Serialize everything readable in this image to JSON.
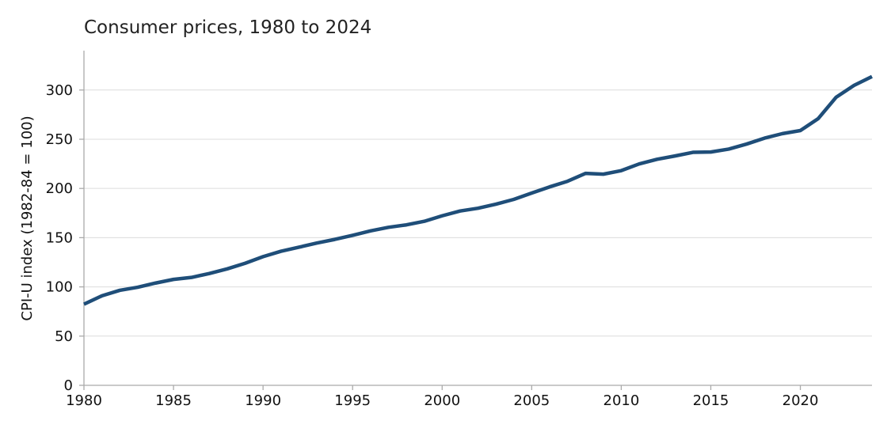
{
  "chart_data": {
    "type": "line",
    "title": "Consumer prices, 1980 to 2024",
    "xlabel": "",
    "ylabel": "CPI-U index (1982-84 = 100)",
    "xlim": [
      1980,
      2024
    ],
    "ylim": [
      0,
      340
    ],
    "x_ticks": [
      1980,
      1985,
      1990,
      1995,
      2000,
      2005,
      2010,
      2015,
      2020
    ],
    "y_ticks": [
      0,
      50,
      100,
      150,
      200,
      250,
      300
    ],
    "grid": "horizontal",
    "legend": "none",
    "line_color": "#1f4e79",
    "series": [
      {
        "x": [
          1980,
          1981,
          1982,
          1983,
          1984,
          1985,
          1986,
          1987,
          1988,
          1989,
          1990,
          1991,
          1992,
          1993,
          1994,
          1995,
          1996,
          1997,
          1998,
          1999,
          2000,
          2001,
          2002,
          2003,
          2004,
          2005,
          2006,
          2007,
          2008,
          2009,
          2010,
          2011,
          2012,
          2013,
          2014,
          2015,
          2016,
          2017,
          2018,
          2019,
          2020,
          2021,
          2022,
          2023,
          2024
        ],
        "values": [
          82.4,
          90.9,
          96.5,
          99.6,
          103.9,
          107.6,
          109.6,
          113.6,
          118.3,
          124.0,
          130.7,
          136.2,
          140.3,
          144.5,
          148.2,
          152.4,
          156.9,
          160.5,
          163.0,
          166.6,
          172.2,
          177.1,
          179.9,
          184.0,
          188.9,
          195.3,
          201.6,
          207.3,
          215.3,
          214.5,
          218.1,
          224.9,
          229.6,
          233.0,
          236.7,
          237.0,
          240.0,
          245.1,
          251.1,
          255.7,
          258.8,
          271.0,
          292.7,
          304.7,
          313.7
        ]
      }
    ]
  }
}
